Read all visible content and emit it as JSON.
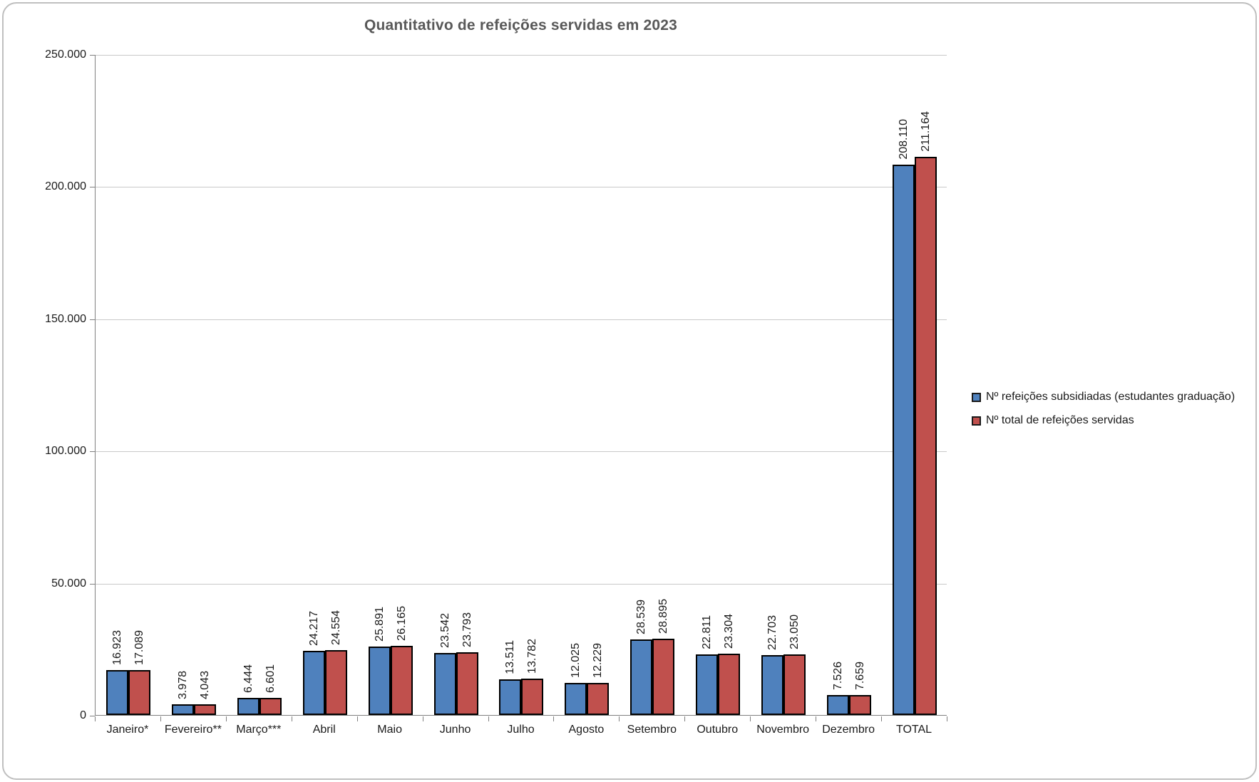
{
  "title": "Quantitativo de refeições servidas em 2023",
  "chart_data": {
    "type": "bar",
    "title": "Quantitativo de refeições servidas em 2023",
    "categories": [
      "Janeiro*",
      "Fevereiro**",
      "Março***",
      "Abril",
      "Maio",
      "Junho",
      "Julho",
      "Agosto",
      "Setembro",
      "Outubro",
      "Novembro",
      "Dezembro",
      "TOTAL"
    ],
    "series": [
      {
        "name": "Nº refeições subsidiadas (estudantes graduação)",
        "color": "#4F81BD",
        "values": [
          16923,
          3978,
          6444,
          24217,
          25891,
          23542,
          13511,
          12025,
          28539,
          22811,
          22703,
          7526,
          208110
        ],
        "labels": [
          "16.923",
          "3.978",
          "6.444",
          "24.217",
          "25.891",
          "23.542",
          "13.511",
          "12.025",
          "28.539",
          "22.811",
          "22.703",
          "7.526",
          "208.110"
        ]
      },
      {
        "name": "Nº total de refeições servidas",
        "color": "#C0504D",
        "values": [
          17089,
          4043,
          6601,
          24554,
          26165,
          23793,
          13782,
          12229,
          28895,
          23304,
          23050,
          7659,
          211164
        ],
        "labels": [
          "17.089",
          "4.043",
          "6.601",
          "24.554",
          "26.165",
          "23.793",
          "13.782",
          "12.229",
          "28.895",
          "23.304",
          "23.050",
          "7.659",
          "211.164"
        ]
      }
    ],
    "xlabel": "",
    "ylabel": "",
    "ylim": [
      0,
      250000
    ],
    "yticks": {
      "values": [
        0,
        50000,
        100000,
        150000,
        200000,
        250000
      ],
      "labels": [
        "0",
        "50.000",
        "100.000",
        "150.000",
        "200.000",
        "250.000"
      ]
    },
    "grid": true,
    "legend_position": "right",
    "bar_label_rotation": "vertical"
  },
  "legend": {
    "items": [
      {
        "label": "Nº refeições subsidiadas (estudantes graduação)",
        "color": "#4F81BD"
      },
      {
        "label": "Nº total de refeições servidas",
        "color": "#C0504D"
      }
    ]
  },
  "colors": {
    "bar_border": "#000000",
    "title_text": "#595959",
    "gridline": "#C9C9C9",
    "axis_line": "#808080",
    "frame_border": "#BFBFBF"
  }
}
